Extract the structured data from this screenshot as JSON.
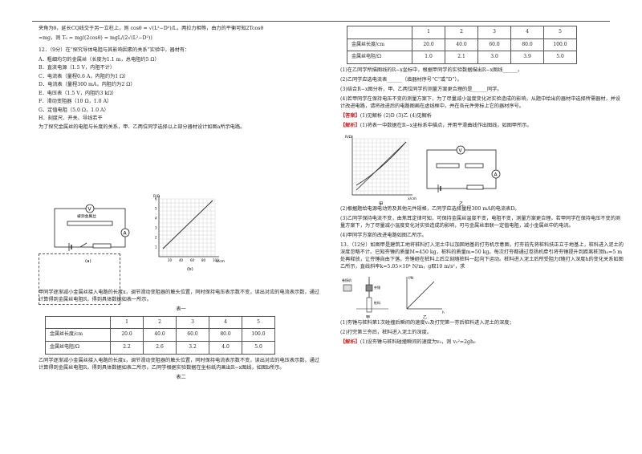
{
  "left": {
    "intro1": "夹角为θ，延长CQ线交于另一立柱上，则 cosθ = √(L²−D²)/L，两拉力相等，由力的平衡可知2Tcosθ",
    "intro2": "=mg，则 T₀ = mg/(2cosθ) = mgL/(2√(L²−D²))",
    "q12_title": "12．（9分）在“探究导体电阻与其影响因素的关系”实验中，器材有：",
    "items": [
      "A．粗细均匀的金属丝（长度为1.1 m，总电阻约5 Ω）",
      "B．直流电源（1.5 V，内阻不计）",
      "C．电流表（量程0.6 A，内阻约为1 Ω）",
      "D．电流表（量程300 mA，内阻约为2 Ω）",
      "E．电压表（1.5 V，内阻约3 kΩ）",
      "F．滑动变阻器（10 Ω，1.0 A）",
      "G．定值电阻（5.0 Ω，1.0 A）",
      "H．刻度尺、开关、导线若干"
    ],
    "q12_text": "为了探究金属丝的电阻与长度的关系，甲、乙两位同学选择以上部分器材设计如图a所示电路。",
    "fig_a_label": "被测金属丝",
    "fig_a_caption": "(a)",
    "fig_b_caption": "(b)",
    "fig_b_ylabel": "R/Ω",
    "fig_b_xlabel": "x/cm",
    "fig_b_yticks": [
      "1",
      "2",
      "3",
      "4",
      "5",
      "6"
    ],
    "fig_b_xticks": [
      "20",
      "40",
      "60",
      "80",
      "100"
    ],
    "para1": "甲同学逐渐减小金属丝接入电路的长度x，调节滑动变阻器的触头位置，同时保持电压表示数不变，读出对应的电流表示数，通过计算得到金属丝电阻R，得到具体数据如表一所示。",
    "table1_title": "表一",
    "table1": {
      "header": [
        "",
        "1",
        "2",
        "3",
        "4",
        "5"
      ],
      "row1": [
        "金属丝长度/cm",
        "20.0",
        "40.0",
        "60.0",
        "80.0",
        "100.0"
      ],
      "row2": [
        "金属丝电阻/Ω",
        "2.2",
        "2.6",
        "3.2",
        "4.0",
        "5.0"
      ]
    },
    "para2": "乙同学逐渐减小金属丝接入电路的长度x，调节滑动变阻器的触头位置，同时保持电流表示数不变，读出对应的电压表示数，通过计算得到金属丝电阻R，得到具体数据如表二所示。乙同学根据实验数据在坐标纸内画出R−x图线，如图b所示。",
    "table2_title": "表二"
  },
  "right": {
    "table2": {
      "header": [
        "",
        "1",
        "2",
        "3",
        "4",
        "5"
      ],
      "row1": [
        "金属丝长度/cm",
        "20.0",
        "40.0",
        "60.0",
        "80.0",
        "100.0"
      ],
      "row2": [
        "金属丝电阻/Ω",
        "1.0",
        "2.1",
        "3.0",
        "3.9",
        "5.0"
      ]
    },
    "q1": "(1)在乙同学所描图线的R−x坐标中，根据甲同学的实验数据描出R−x图线______。",
    "q2": "(2)乙同学应选电流表______（填器材序号“C”或“D”）。",
    "q3": "(3)结合R−x图分析，甲、乙两位同学的测量方案更合理的是______同学。",
    "q4": "(4)若甲同学在保持电压不变的测量方案下，为了尽量减小温度变化对实验造成的影响，从题中给出的器材中选择所需器材，并设计改进电路，请将改进后的电路图画在虚线框中，并在各元件旁标上它的器材序号。",
    "answer_tag": "【答案】",
    "answer_text": "(1)见解析  (2)D  (3)乙  (4)见解析",
    "analysis_tag": "【解析】",
    "analysis_text": "(1)将表一中数据在R−x坐标系中描点，并用平滑曲线作出图线，如图甲所示。",
    "fig_jia_caption": "甲",
    "fig_yi_caption": "乙",
    "fig_jia_ylabel": "R/Ω",
    "fig_jia_xlabel": "x/cm",
    "a2": "(2)根据题给电源电动势及其他元件规格，乙同学应选择量程300 mA的电流表D。",
    "a3": "(3)乙同学保持电流不变，由焦耳定律可知，可保持金属丝温度不变，电阻不变，测量方案更合理。若甲同学在保持电压不变的测量方案下，为了尽量减小温度变化对实验造成的影响，可与金属丝串联一定值电阻，减小金属丝中的电流。",
    "a4": "(4)甲同学方案的改进电路如图乙所示。",
    "q13": "13．（12分）如图甲是建筑工地将桩料打入泥土中以加固地基的打夯机示意图，打夯前先将桩料扶正立于地基上，桩料进入泥土的深度忽略不计。已知夯锤的质量M=450 kg，桩料的质量m=50 kg。每次打夯都通过卷扬机牵引将夯锤提升到距离桩顶h₀=5 m处再释放，让夯锤自由下落，夯锤砸在桩料上后立刻随桩料一起向下运动。桩料进入泥土后所受阻力f随打入深度h的变化关系如图乙所示，直线斜率k=5.05×10⁴ N/m，g取10 m/s²，求",
    "fig13_label1": "卷扬机",
    "fig13_label2": "夯锤",
    "fig13_label3": "桩料",
    "fig13_ylabel": "f/N",
    "fig13_xlabel": "h",
    "fig13_cap_jia": "甲",
    "fig13_cap_yi": "乙",
    "q13_1": "(1)夯锤与桩料第1次碰撞后瞬间的速度v₀及打完第一夯后桩料进入泥土的深度；",
    "q13_2": "(2)打完第三夯后，桩料进入泥土的深度。",
    "analysis2_tag": "【解析】",
    "analysis2_text": "(1)设夯锤与桩料碰撞瞬间的速度为v₀，则 v₀²=2gh₀"
  }
}
